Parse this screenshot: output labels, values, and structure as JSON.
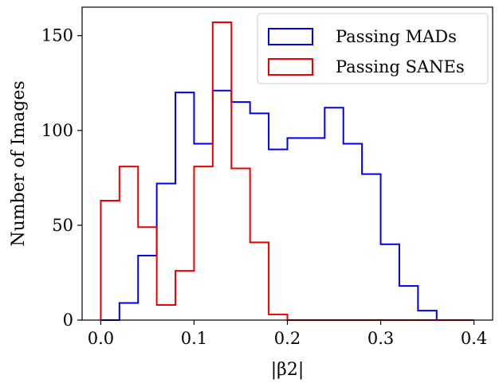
{
  "chart_data": {
    "type": "histogram",
    "xlabel": "|β2|",
    "ylabel": "Number of Images",
    "xlim": [
      -0.02,
      0.42
    ],
    "ylim": [
      0,
      165
    ],
    "xticks": [
      0.0,
      0.1,
      0.2,
      0.3,
      0.4
    ],
    "xtick_labels": [
      "0.0",
      "0.1",
      "0.2",
      "0.3",
      "0.4"
    ],
    "yticks": [
      0,
      50,
      100,
      150
    ],
    "ytick_labels": [
      "0",
      "50",
      "100",
      "150"
    ],
    "grid": false,
    "legend_position": "top-right",
    "bin_edges": [
      0.0,
      0.02,
      0.04,
      0.06,
      0.08,
      0.1,
      0.12,
      0.14,
      0.16,
      0.18,
      0.2,
      0.22,
      0.24,
      0.26,
      0.28,
      0.3,
      0.32,
      0.34,
      0.36,
      0.38,
      0.4
    ],
    "series": [
      {
        "name": "Passing MADs",
        "color": "#0000ee",
        "counts": [
          0,
          9,
          34,
          72,
          120,
          93,
          121,
          115,
          109,
          90,
          96,
          96,
          112,
          93,
          77,
          40,
          18,
          5,
          0,
          0
        ]
      },
      {
        "name": "Passing SANEs",
        "color": "#ee0000",
        "counts": [
          63,
          81,
          49,
          8,
          26,
          81,
          157,
          80,
          41,
          3,
          0,
          0,
          0,
          0,
          0,
          0,
          0,
          0,
          0,
          0
        ]
      }
    ]
  }
}
